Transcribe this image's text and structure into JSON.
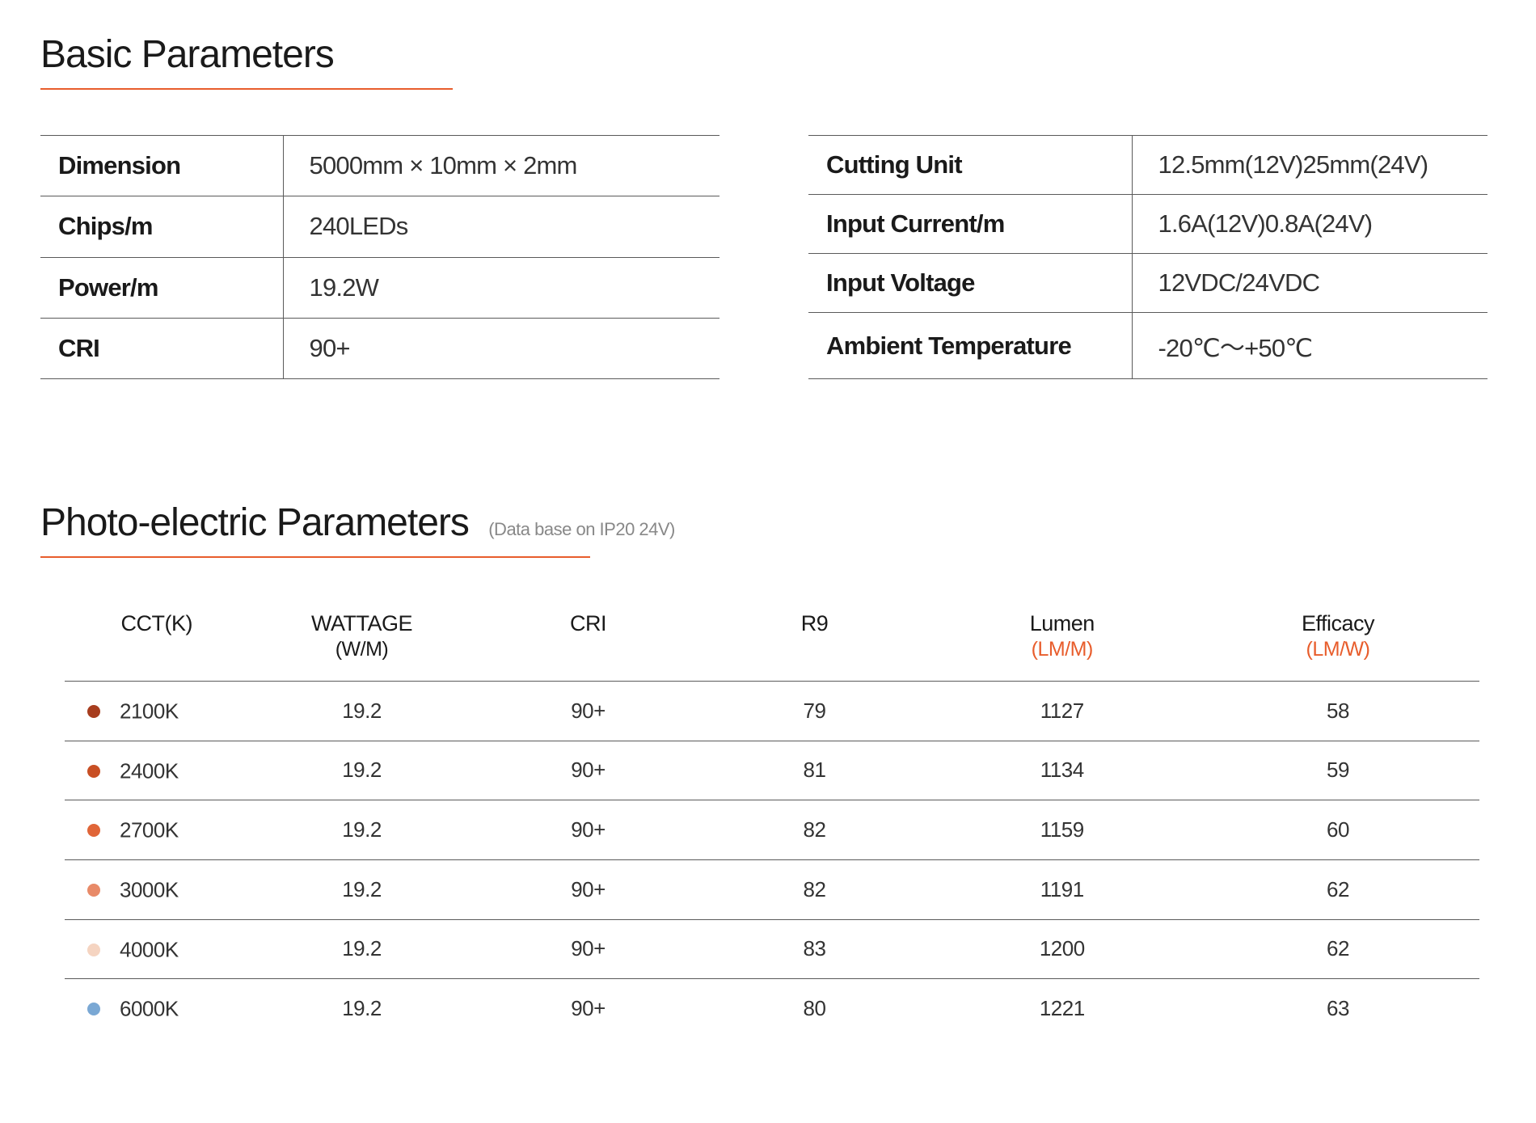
{
  "colors": {
    "accent": "#e85d2c",
    "text": "#1a1a1a",
    "border": "#5a5a5a",
    "background": "#ffffff",
    "subtitle": "#888888"
  },
  "basic": {
    "title": "Basic Parameters",
    "left": [
      {
        "label": "Dimension",
        "value": "5000mm × 10mm × 2mm"
      },
      {
        "label": "Chips/m",
        "value": "240LEDs"
      },
      {
        "label": "Power/m",
        "value": "19.2W"
      },
      {
        "label": "CRI",
        "value": "90+"
      }
    ],
    "right": [
      {
        "label": "Cutting Unit",
        "value": "12.5mm(12V)25mm(24V)"
      },
      {
        "label": "Input Current/m",
        "value": "1.6A(12V)0.8A(24V)"
      },
      {
        "label": "Input Voltage",
        "value": "12VDC/24VDC"
      },
      {
        "label": "Ambient Temperature",
        "value": "-20℃～+50℃"
      }
    ]
  },
  "photo": {
    "title": "Photo-electric Parameters",
    "subtitle": "(Data base on IP20 24V)",
    "columns": [
      {
        "label": "CCT(K)",
        "sub": ""
      },
      {
        "label": "WATTAGE",
        "sub": "(W/M)"
      },
      {
        "label": "CRI",
        "sub": ""
      },
      {
        "label": "R9",
        "sub": ""
      },
      {
        "label": "Lumen",
        "sub": "(LM/M)",
        "accent": true
      },
      {
        "label": "Efficacy",
        "sub": "(LM/W)",
        "accent": true
      }
    ],
    "rows": [
      {
        "dot_color": "#a73d1e",
        "cct": "2100K",
        "wattage": "19.2",
        "cri": "90+",
        "r9": "79",
        "lumen": "1127",
        "efficacy": "58"
      },
      {
        "dot_color": "#c84f24",
        "cct": "2400K",
        "wattage": "19.2",
        "cri": "90+",
        "r9": "81",
        "lumen": "1134",
        "efficacy": "59"
      },
      {
        "dot_color": "#e06538",
        "cct": "2700K",
        "wattage": "19.2",
        "cri": "90+",
        "r9": "82",
        "lumen": "1159",
        "efficacy": "60"
      },
      {
        "dot_color": "#e88a68",
        "cct": "3000K",
        "wattage": "19.2",
        "cri": "90+",
        "r9": "82",
        "lumen": "1191",
        "efficacy": "62"
      },
      {
        "dot_color": "#f5d4c1",
        "cct": "4000K",
        "wattage": "19.2",
        "cri": "90+",
        "r9": "83",
        "lumen": "1200",
        "efficacy": "62"
      },
      {
        "dot_color": "#7aa8d4",
        "cct": "6000K",
        "wattage": "19.2",
        "cri": "90+",
        "r9": "80",
        "lumen": "1221",
        "efficacy": "63"
      }
    ]
  }
}
